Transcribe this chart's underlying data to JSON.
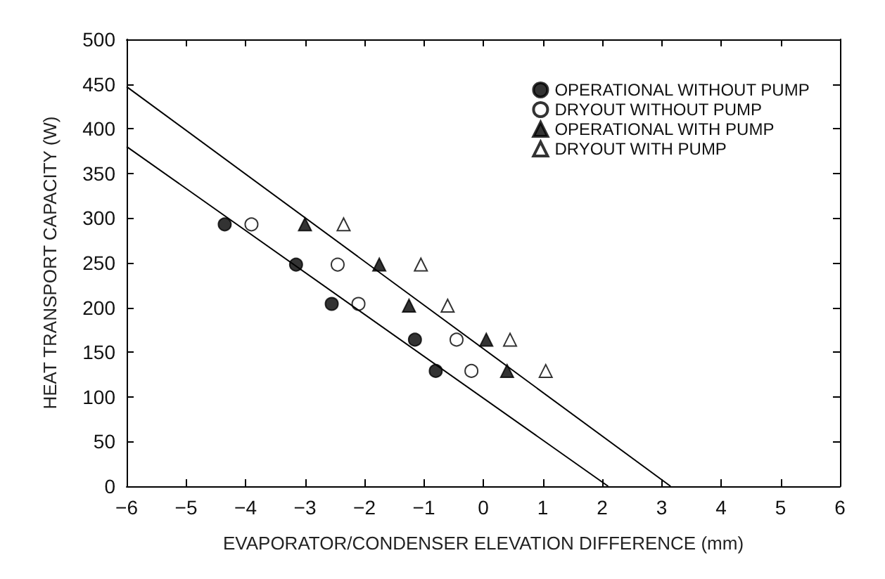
{
  "chart_data": {
    "type": "scatter",
    "xlabel": "EVAPORATOR/CONDENSER ELEVATION DIFFERENCE (mm)",
    "ylabel": "HEAT TRANSPORT CAPACITY (W)",
    "xlim": [
      -6,
      6
    ],
    "xticks": [
      -6,
      -5,
      -4,
      -3,
      -2,
      -1,
      0,
      1,
      2,
      3,
      4,
      5,
      6
    ],
    "ylim": [
      0,
      500
    ],
    "yticks": [
      0,
      50,
      100,
      150,
      200,
      250,
      300,
      350,
      400,
      450,
      500
    ],
    "grid": false,
    "legend": "top right",
    "series": [
      {
        "name": "OPERATIONAL WITHOUT PUMP",
        "color": "#000000",
        "marker": "circle",
        "x": [
          -4.35,
          -3.15,
          -2.55,
          -1.15,
          -0.8
        ],
        "values": [
          293,
          248,
          204,
          164,
          129
        ]
      },
      {
        "name": "DRYOUT WITHOUT PUMP",
        "color": "#ffffff",
        "marker": "circle",
        "x": [
          -3.9,
          -2.45,
          -2.1,
          -0.45,
          -0.2
        ],
        "values": [
          293,
          248,
          204,
          164,
          129
        ]
      },
      {
        "name": "OPERATIONAL WITH PUMP",
        "color": "#000000",
        "marker": "triangle",
        "x": [
          -3.0,
          -1.75,
          -1.25,
          0.05,
          0.4
        ],
        "values": [
          293,
          248,
          202,
          164,
          129
        ]
      },
      {
        "name": "DRYOUT WITH PUMP",
        "color": "#ffffff",
        "marker": "triangle",
        "x": [
          -2.35,
          -1.05,
          -0.6,
          0.45,
          1.05
        ],
        "values": [
          293,
          248,
          202,
          164,
          129
        ]
      },
      {
        "type": "line",
        "color": "#000000",
        "marker": "none",
        "x": [
          -6,
          2.1
        ],
        "values": [
          380,
          0
        ]
      },
      {
        "type": "line",
        "color": "#000000",
        "marker": "none",
        "x": [
          -6,
          3.15
        ],
        "values": [
          447,
          0
        ]
      }
    ]
  }
}
